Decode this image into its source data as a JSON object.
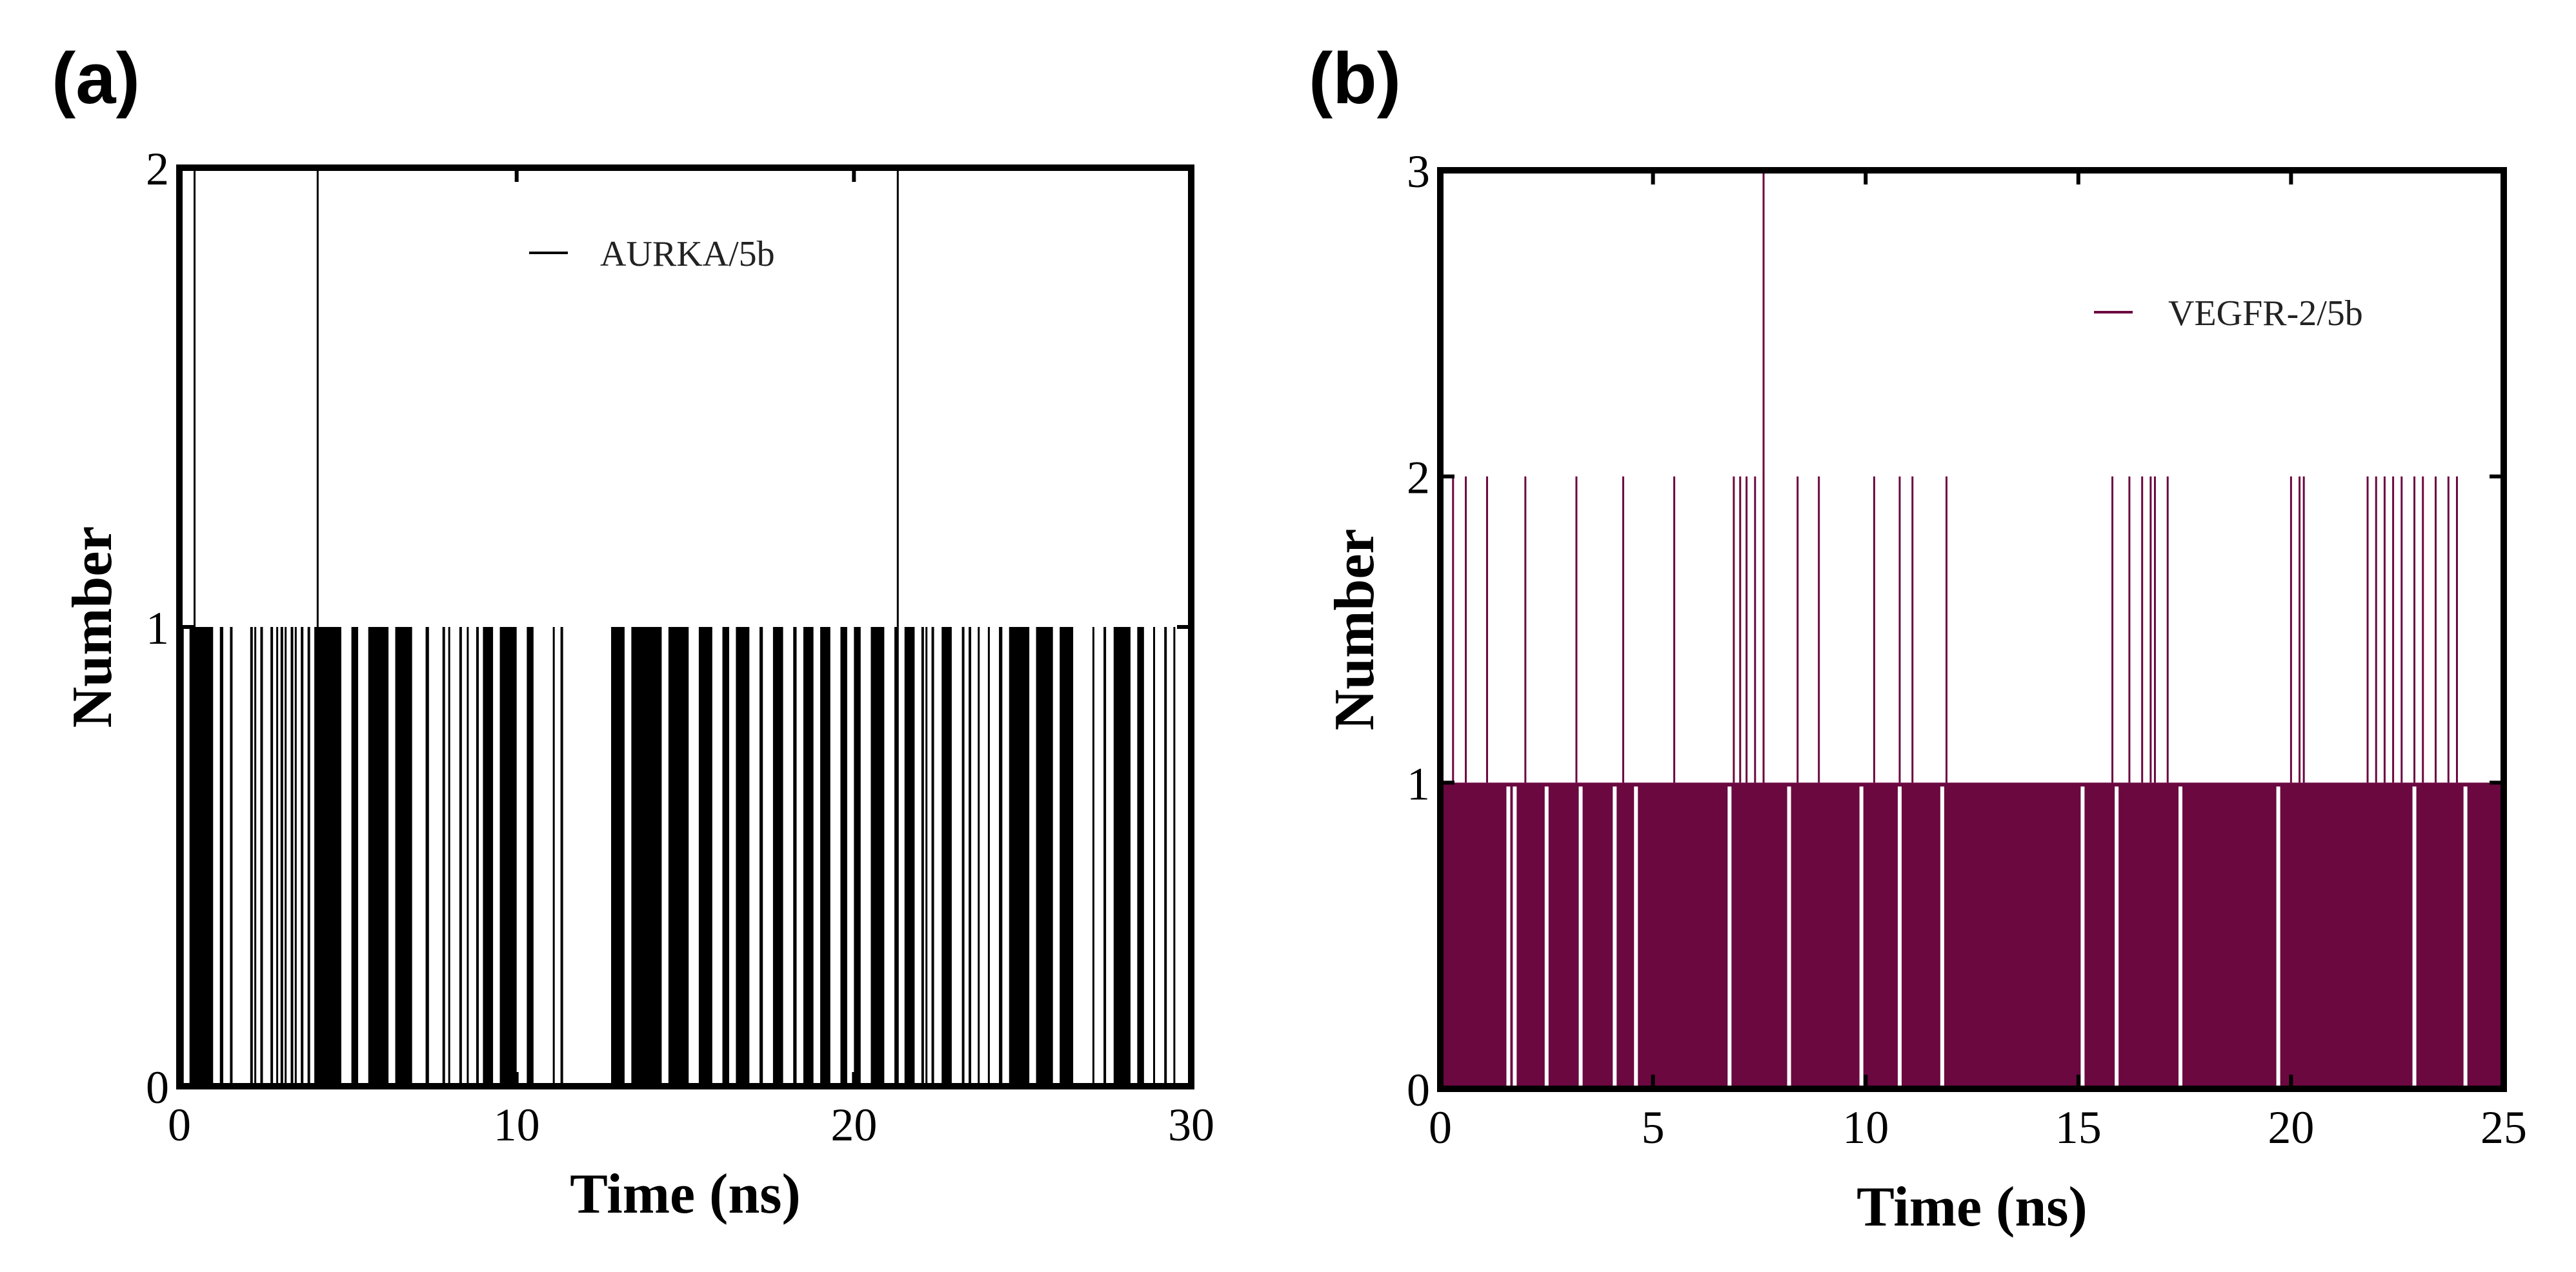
{
  "chart_data": [
    {
      "panel": "(a)",
      "type": "bar",
      "xlabel": "Time (ns)",
      "ylabel": "Number",
      "xlim": [
        0,
        30
      ],
      "ylim": [
        0,
        2
      ],
      "xticks": [
        0,
        10,
        20,
        30
      ],
      "yticks": [
        0,
        1,
        2
      ],
      "grid": false,
      "legend": {
        "label": "AURKA/5b",
        "placement": "top-center"
      },
      "series": [
        {
          "name": "AURKA/5b",
          "color": "#000000",
          "segments_value_1_ns": [
            [
              0.3,
              1.0
            ],
            [
              1.2,
              1.3
            ],
            [
              1.5,
              1.55
            ],
            [
              2.1,
              2.15
            ],
            [
              2.4,
              2.45
            ],
            [
              2.7,
              2.75
            ],
            [
              3.0,
              3.05
            ],
            [
              3.3,
              3.35
            ],
            [
              3.6,
              3.65
            ],
            [
              3.8,
              3.85
            ],
            [
              4.0,
              4.8
            ],
            [
              5.1,
              5.3
            ],
            [
              5.6,
              6.2
            ],
            [
              6.4,
              6.9
            ],
            [
              7.3,
              7.4
            ],
            [
              7.8,
              7.85
            ],
            [
              8.3,
              8.35
            ],
            [
              8.8,
              8.85
            ],
            [
              9.0,
              9.3
            ],
            [
              9.5,
              10.0
            ],
            [
              10.3,
              10.5
            ],
            [
              11.3,
              11.35
            ],
            [
              12.8,
              13.2
            ],
            [
              13.4,
              14.3
            ],
            [
              14.5,
              15.1
            ],
            [
              15.4,
              15.8
            ],
            [
              16.1,
              16.3
            ],
            [
              16.5,
              16.9
            ],
            [
              17.2,
              17.3
            ],
            [
              17.6,
              17.9
            ],
            [
              18.2,
              18.3
            ],
            [
              18.5,
              18.8
            ],
            [
              19.0,
              19.3
            ],
            [
              19.6,
              19.8
            ],
            [
              20.0,
              20.2
            ],
            [
              20.5,
              20.9
            ],
            [
              21.2,
              21.25
            ],
            [
              21.5,
              21.8
            ],
            [
              22.0,
              22.05
            ],
            [
              22.3,
              22.35
            ],
            [
              22.6,
              22.9
            ],
            [
              23.2,
              23.25
            ],
            [
              23.4,
              23.45
            ],
            [
              24.3,
              24.4
            ],
            [
              24.6,
              25.2
            ],
            [
              25.4,
              25.9
            ],
            [
              26.1,
              26.5
            ],
            [
              27.4,
              27.45
            ],
            [
              27.7,
              28.2
            ],
            [
              28.4,
              28.6
            ],
            [
              29.2,
              29.25
            ]
          ],
          "single_spikes": [
            {
              "t": 0.45,
              "value": 2
            },
            {
              "t": 4.1,
              "value": 2
            },
            {
              "t": 21.3,
              "value": 2
            }
          ],
          "short_lines_value_1_ns": [
            0.1,
            2.25,
            2.9,
            3.15,
            3.45,
            8.0,
            8.55,
            11.1,
            22.15,
            23.7,
            24.0,
            27.1,
            28.9,
            29.5
          ]
        }
      ]
    },
    {
      "panel": "(b)",
      "type": "bar",
      "xlabel": "Time (ns)",
      "ylabel": "Number",
      "xlim": [
        0,
        25
      ],
      "ylim": [
        0,
        3
      ],
      "xticks": [
        0,
        5,
        10,
        15,
        20,
        25
      ],
      "yticks": [
        0,
        1,
        2,
        3
      ],
      "grid": false,
      "legend": {
        "label": "VEGFR-2/5b",
        "placement": "top-right"
      },
      "series": [
        {
          "name": "VEGFR-2/5b",
          "color": "#6b0840",
          "fill_value": 1,
          "gaps_value_0_ns": [
            1.6,
            1.75,
            2.5,
            3.3,
            4.1,
            4.6,
            6.8,
            8.2,
            9.9,
            10.8,
            11.8,
            15.1,
            15.9,
            17.4,
            19.7,
            22.9,
            24.1
          ],
          "spikes_value_2_ns": [
            0.3,
            0.6,
            1.1,
            2.0,
            3.2,
            4.3,
            5.5,
            6.9,
            7.05,
            7.2,
            7.4,
            7.6,
            8.4,
            8.9,
            10.2,
            10.8,
            11.1,
            11.9,
            15.8,
            16.2,
            16.5,
            16.7,
            16.8,
            17.1,
            20.0,
            20.2,
            20.3,
            21.8,
            22.0,
            22.2,
            22.4,
            22.6,
            22.9,
            23.1,
            23.4,
            23.7,
            23.9
          ],
          "spikes_value_3_ns": [
            7.6
          ]
        }
      ]
    }
  ]
}
